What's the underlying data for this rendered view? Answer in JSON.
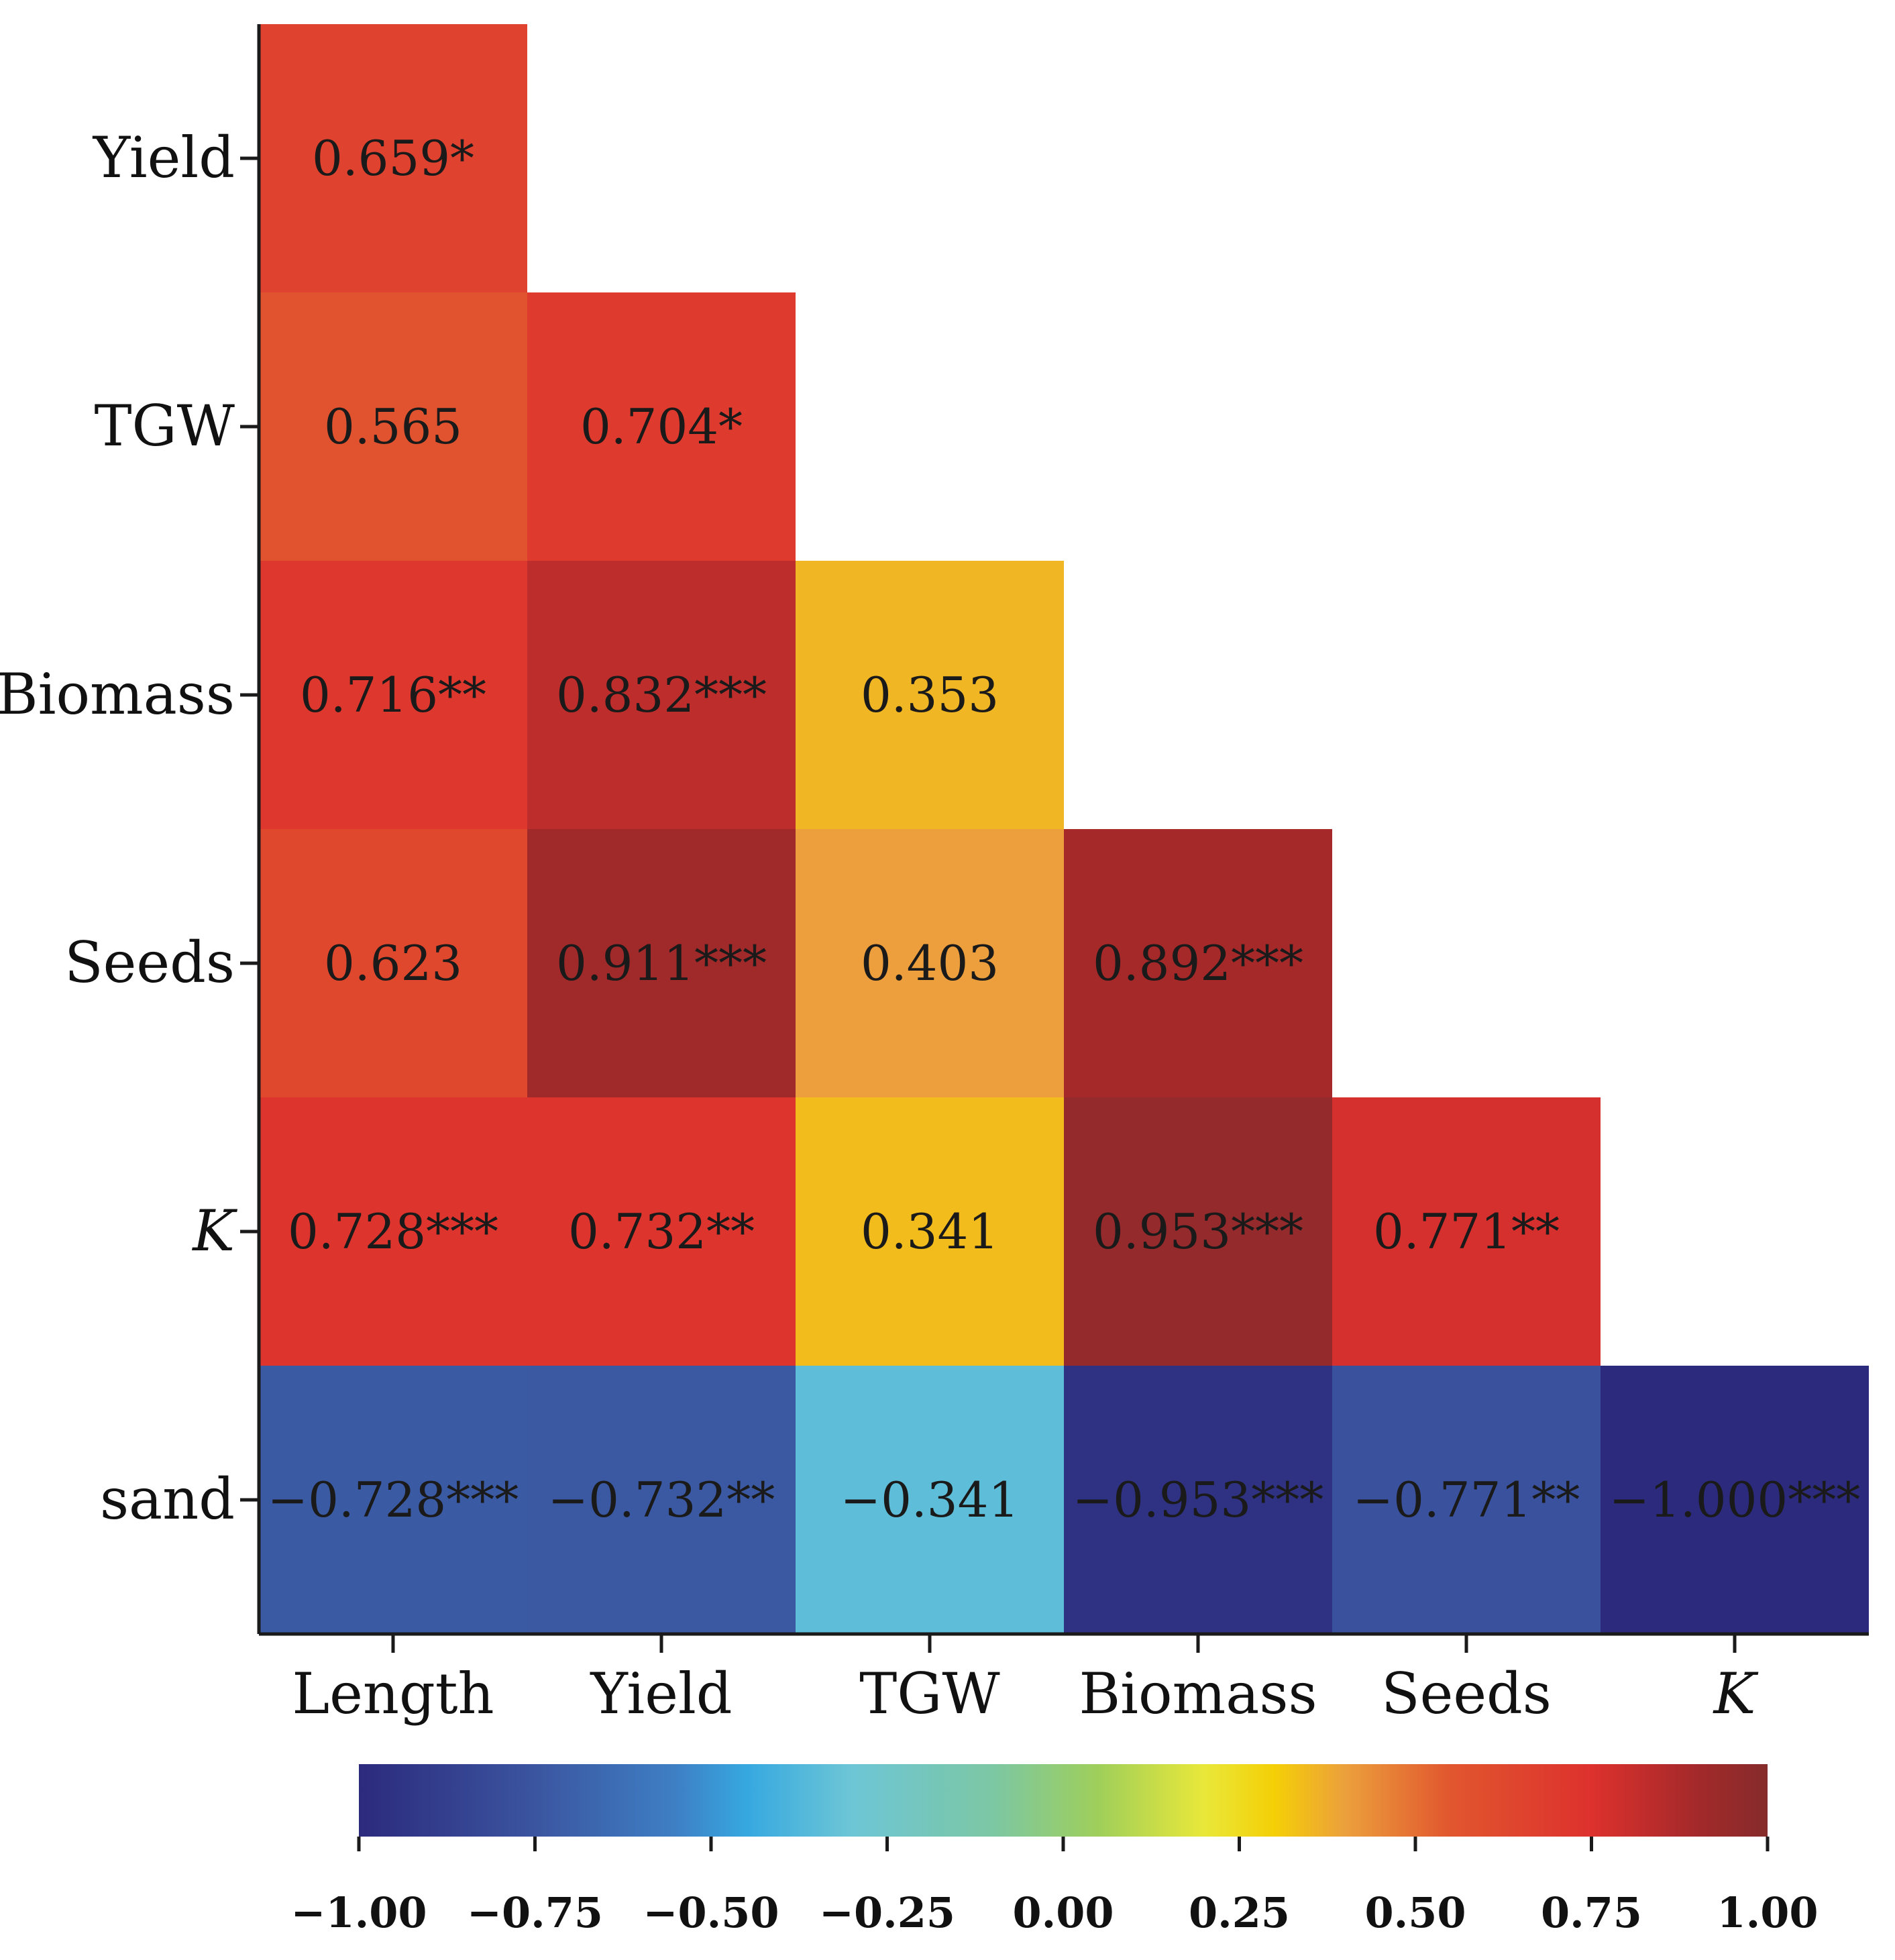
{
  "chart_data": {
    "type": "heatmap",
    "subtype": "lower-triangular correlation matrix",
    "x_labels": [
      "Length",
      "Yield",
      "TGW",
      "Biomass",
      "Seeds",
      "K"
    ],
    "y_labels": [
      "Yield",
      "TGW",
      "Biomass",
      "Seeds",
      "K",
      "sand"
    ],
    "italic_labels": [
      "K"
    ],
    "cells": [
      {
        "row": "Yield",
        "col": "Length",
        "value": 0.659,
        "label": "0.659*"
      },
      {
        "row": "TGW",
        "col": "Length",
        "value": 0.565,
        "label": "0.565"
      },
      {
        "row": "TGW",
        "col": "Yield",
        "value": 0.704,
        "label": "0.704*"
      },
      {
        "row": "Biomass",
        "col": "Length",
        "value": 0.716,
        "label": "0.716**"
      },
      {
        "row": "Biomass",
        "col": "Yield",
        "value": 0.832,
        "label": "0.832***"
      },
      {
        "row": "Biomass",
        "col": "TGW",
        "value": 0.353,
        "label": "0.353"
      },
      {
        "row": "Seeds",
        "col": "Length",
        "value": 0.623,
        "label": "0.623"
      },
      {
        "row": "Seeds",
        "col": "Yield",
        "value": 0.911,
        "label": "0.911***"
      },
      {
        "row": "Seeds",
        "col": "TGW",
        "value": 0.403,
        "label": "0.403"
      },
      {
        "row": "Seeds",
        "col": "Biomass",
        "value": 0.892,
        "label": "0.892***"
      },
      {
        "row": "K",
        "col": "Length",
        "value": 0.728,
        "label": "0.728***"
      },
      {
        "row": "K",
        "col": "Yield",
        "value": 0.732,
        "label": "0.732**"
      },
      {
        "row": "K",
        "col": "TGW",
        "value": 0.341,
        "label": "0.341"
      },
      {
        "row": "K",
        "col": "Biomass",
        "value": 0.953,
        "label": "0.953***"
      },
      {
        "row": "K",
        "col": "Seeds",
        "value": 0.771,
        "label": "0.771**"
      },
      {
        "row": "sand",
        "col": "Length",
        "value": -0.728,
        "label": "−0.728***"
      },
      {
        "row": "sand",
        "col": "Yield",
        "value": -0.732,
        "label": "−0.732**"
      },
      {
        "row": "sand",
        "col": "TGW",
        "value": -0.341,
        "label": "−0.341"
      },
      {
        "row": "sand",
        "col": "Biomass",
        "value": -0.953,
        "label": "−0.953***"
      },
      {
        "row": "sand",
        "col": "Seeds",
        "value": -0.771,
        "label": "−0.771**"
      },
      {
        "row": "sand",
        "col": "K",
        "value": -1.0,
        "label": "−1.000***"
      }
    ],
    "colorbar": {
      "range": [
        -1.0,
        1.0
      ],
      "ticks": [
        -1.0,
        -0.75,
        -0.5,
        -0.25,
        0.0,
        0.25,
        0.5,
        0.75,
        1.0
      ],
      "tick_labels": [
        "−1.00",
        "−0.75",
        "−0.50",
        "−0.25",
        "0.00",
        "0.25",
        "0.50",
        "0.75",
        "1.00"
      ],
      "orientation": "horizontal",
      "placement": "bottom",
      "color_stops": [
        {
          "value": -1.0,
          "color": "#2c2a7c"
        },
        {
          "value": -0.75,
          "color": "#3b55a0"
        },
        {
          "value": -0.55,
          "color": "#3e7fc4"
        },
        {
          "value": -0.45,
          "color": "#36a8e0"
        },
        {
          "value": -0.3,
          "color": "#6dc6d6"
        },
        {
          "value": -0.1,
          "color": "#7cc7a4"
        },
        {
          "value": 0.05,
          "color": "#9fcf5a"
        },
        {
          "value": 0.2,
          "color": "#e9e83a"
        },
        {
          "value": 0.3,
          "color": "#f4cf06"
        },
        {
          "value": 0.4,
          "color": "#eca03c"
        },
        {
          "value": 0.55,
          "color": "#e1562f"
        },
        {
          "value": 0.75,
          "color": "#dd312d"
        },
        {
          "value": 0.9,
          "color": "#a3292a"
        },
        {
          "value": 1.0,
          "color": "#862b2b"
        }
      ]
    }
  }
}
